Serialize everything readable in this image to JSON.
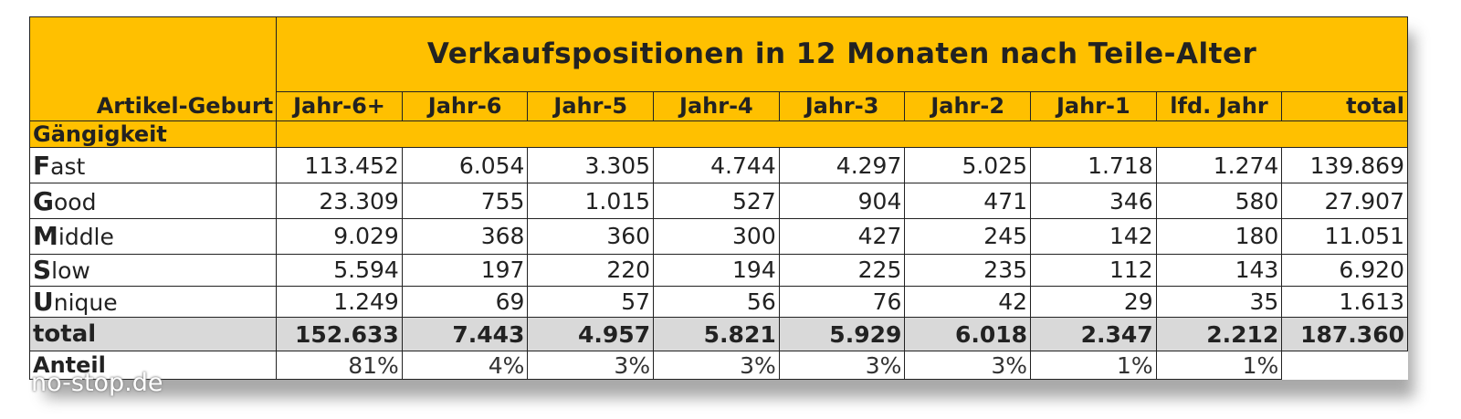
{
  "title": "Verkaufspositionen in 12 Monaten nach Teile-Alter",
  "row_header_label": "Artikel-Geburt",
  "group_label": "Gängigkeit",
  "columns": [
    "Jahr-6+",
    "Jahr-6",
    "Jahr-5",
    "Jahr-4",
    "Jahr-3",
    "Jahr-2",
    "Jahr-1",
    "lfd. Jahr",
    "total"
  ],
  "rows": [
    {
      "initial": "F",
      "rest": "ast",
      "values": [
        "113.452",
        "6.054",
        "3.305",
        "4.744",
        "4.297",
        "5.025",
        "1.718",
        "1.274",
        "139.869"
      ]
    },
    {
      "initial": "G",
      "rest": "ood",
      "values": [
        "23.309",
        "755",
        "1.015",
        "527",
        "904",
        "471",
        "346",
        "580",
        "27.907"
      ]
    },
    {
      "initial": "M",
      "rest": "iddle",
      "values": [
        "9.029",
        "368",
        "360",
        "300",
        "427",
        "245",
        "142",
        "180",
        "11.051"
      ]
    },
    {
      "initial": "S",
      "rest": "low",
      "values": [
        "5.594",
        "197",
        "220",
        "194",
        "225",
        "235",
        "112",
        "143",
        "6.920"
      ]
    },
    {
      "initial": "U",
      "rest": "nique",
      "values": [
        "1.249",
        "69",
        "57",
        "56",
        "76",
        "42",
        "29",
        "35",
        "1.613"
      ]
    }
  ],
  "total": {
    "label": "total",
    "values": [
      "152.633",
      "7.443",
      "4.957",
      "5.821",
      "5.929",
      "6.018",
      "2.347",
      "2.212",
      "187.360"
    ]
  },
  "share": {
    "label": "Anteil",
    "values": [
      "81%",
      "4%",
      "3%",
      "3%",
      "3%",
      "3%",
      "1%",
      "1%",
      ""
    ]
  },
  "watermark": "no-stop.de",
  "colors": {
    "header_fill": "#ffc000",
    "total_fill": "#d9d9d9",
    "border": "#222222"
  }
}
